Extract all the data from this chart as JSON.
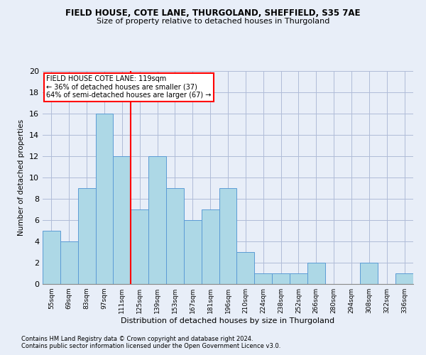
{
  "title": "FIELD HOUSE, COTE LANE, THURGOLAND, SHEFFIELD, S35 7AE",
  "subtitle": "Size of property relative to detached houses in Thurgoland",
  "xlabel": "Distribution of detached houses by size in Thurgoland",
  "ylabel": "Number of detached properties",
  "footnote1": "Contains HM Land Registry data © Crown copyright and database right 2024.",
  "footnote2": "Contains public sector information licensed under the Open Government Licence v3.0.",
  "bar_labels": [
    "55sqm",
    "69sqm",
    "83sqm",
    "97sqm",
    "111sqm",
    "125sqm",
    "139sqm",
    "153sqm",
    "167sqm",
    "181sqm",
    "196sqm",
    "210sqm",
    "224sqm",
    "238sqm",
    "252sqm",
    "266sqm",
    "280sqm",
    "294sqm",
    "308sqm",
    "322sqm",
    "336sqm"
  ],
  "bar_values": [
    5,
    4,
    9,
    16,
    12,
    7,
    12,
    9,
    6,
    7,
    9,
    3,
    1,
    1,
    1,
    2,
    0,
    0,
    2,
    0,
    1
  ],
  "bar_color": "#add8e6",
  "bar_edge_color": "#5b9bd5",
  "vline_x": 4.5,
  "vline_color": "red",
  "annotation_title": "FIELD HOUSE COTE LANE: 119sqm",
  "annotation_line1": "← 36% of detached houses are smaller (37)",
  "annotation_line2": "64% of semi-detached houses are larger (67) →",
  "annotation_box_color": "red",
  "ylim": [
    0,
    20
  ],
  "yticks": [
    0,
    2,
    4,
    6,
    8,
    10,
    12,
    14,
    16,
    18,
    20
  ],
  "background_color": "#e8eef8",
  "grid_color": "#b0bcd8",
  "title_fontsize": 8.5,
  "subtitle_fontsize": 8.0,
  "xlabel_fontsize": 8.0,
  "ylabel_fontsize": 7.5,
  "xtick_fontsize": 6.5,
  "ytick_fontsize": 8.0,
  "annot_fontsize": 7.0,
  "footnote_fontsize": 6.0
}
